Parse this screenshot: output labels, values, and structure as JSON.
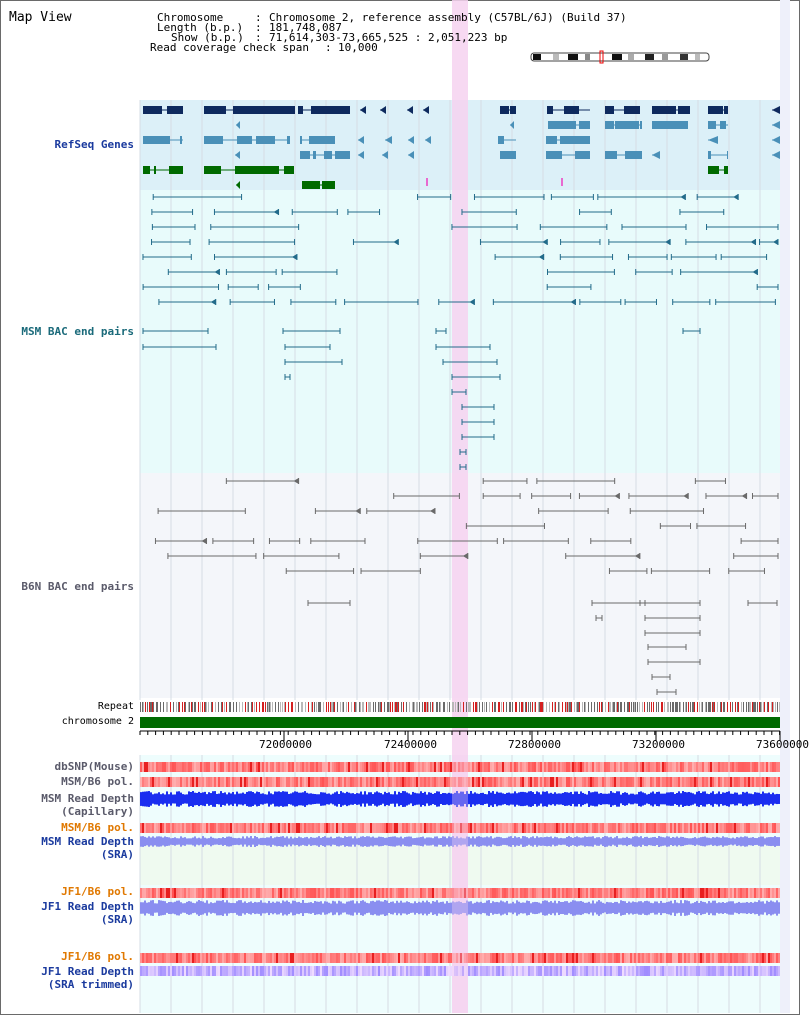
{
  "view_title": "Map View",
  "header": {
    "chromosome_label": "Chromosome",
    "chromosome_value": "Chromosome 2, reference assembly (C57BL/6J) (Build 37)",
    "length_label": "Length (b.p.)",
    "length_value": "181,748,087",
    "show_label": "Show (b.p.)",
    "show_value": "71,614,303-73,665,525 : 2,051,223 bp",
    "coverage_label": "Read coverage check span",
    "coverage_value": "10,000"
  },
  "tracks": {
    "refseq": "RefSeq Genes",
    "msm_bac": "MSM BAC end pairs",
    "b6n_bac": "B6N BAC end pairs",
    "repeat": "Repeat",
    "chromosome": "chromosome 2",
    "dbsnp": "dbSNP(Mouse)",
    "msm_b6_pol": "MSM/B6 pol.",
    "msm_read_depth_cap_1": "MSM Read Depth",
    "msm_read_depth_cap_2": "(Capillary)",
    "msm_b6_pol_2": "MSM/B6 pol.",
    "msm_read_depth_sra_1": "MSM Read Depth",
    "msm_read_depth_sra_2": "(SRA)",
    "jf1_b6_pol": "JF1/B6 pol.",
    "jf1_read_depth_sra_1": "JF1 Read Depth",
    "jf1_read_depth_sra_2": "(SRA)",
    "jf1_b6_pol_2": "JF1/B6 pol.",
    "jf1_read_depth_trim_1": "JF1 Read Depth",
    "jf1_read_depth_trim_2": "(SRA trimmed)"
  },
  "axis": {
    "ticks": [
      "72000000",
      "72400000",
      "72800000",
      "73200000",
      "73600000"
    ]
  },
  "colors": {
    "refseq_bg": "#dcf0f8",
    "msm_bg": "#e8fbfb",
    "b6n_bg": "#f4f6fa",
    "gene_navy": "#0e2a5e",
    "gene_steel": "#4a90b8",
    "gene_green": "#006a00",
    "msm_line": "#226b8a",
    "b6n_line": "#6a6a6a",
    "chromosome_bar": "#006a00",
    "highlight": "#f6d2f0",
    "label_blue": "#1a3a9e",
    "label_teal": "#1a6a7a",
    "label_orange": "#e07800",
    "label_gray": "#5a5a6a"
  }
}
